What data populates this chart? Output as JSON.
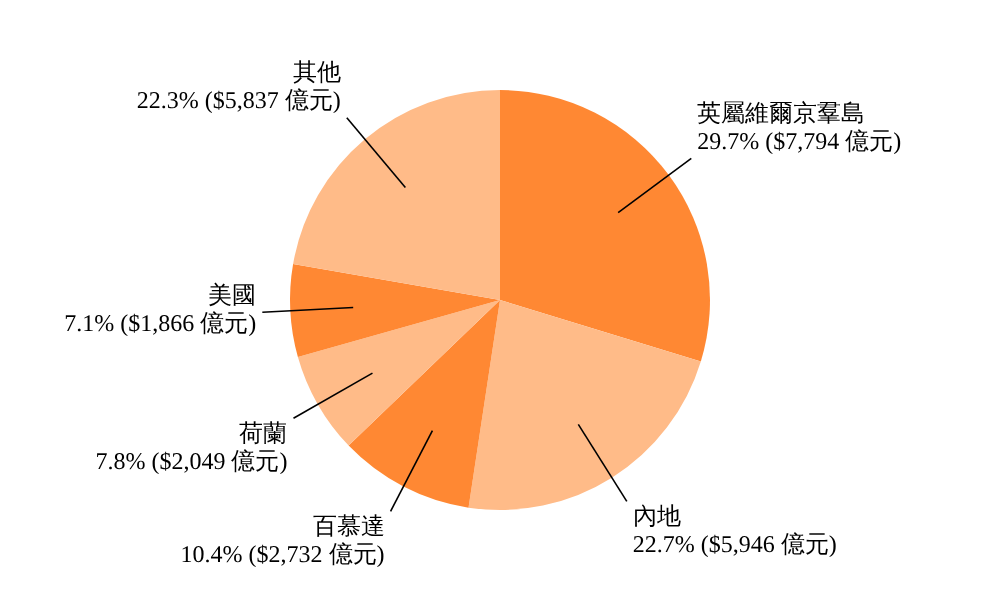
{
  "chart_data": {
    "type": "pie",
    "categories": [
      "英屬維爾京羣島",
      "內地",
      "百慕達",
      "荷蘭",
      "美國",
      "其他"
    ],
    "values": [
      7794,
      5946,
      2732,
      2049,
      1866,
      5837
    ],
    "value_labels": [
      "29.7% ($7,794 億元)",
      "22.7% ($5,946 億元)",
      "10.4% ($2,732 億元)",
      "7.8% ($2,049 億元)",
      "7.1% ($1,866 億元)",
      "22.3% ($5,837 億元)"
    ],
    "colors": [
      "#ff8833",
      "#ffbb88",
      "#ff8833",
      "#ffbb88",
      "#ff8833",
      "#ffbb88"
    ]
  }
}
